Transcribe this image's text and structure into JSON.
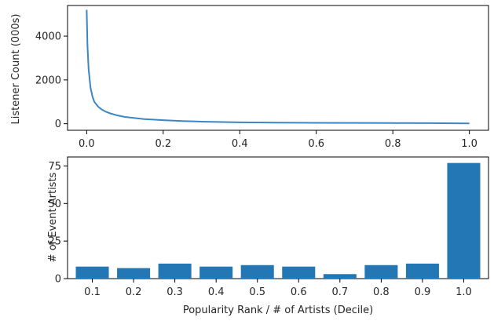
{
  "chart_data": [
    {
      "type": "line",
      "title": "",
      "xlabel": "",
      "ylabel": "Listener Count (000s)",
      "xlim": [
        -0.05,
        1.05
      ],
      "ylim": [
        -300,
        5400
      ],
      "xticks": [
        0.0,
        0.2,
        0.4,
        0.6,
        0.8,
        1.0
      ],
      "xtick_labels": [
        "0.0",
        "0.2",
        "0.4",
        "0.6",
        "0.8",
        "1.0"
      ],
      "yticks": [
        0,
        2000,
        4000
      ],
      "ytick_labels": [
        "0",
        "2000",
        "4000"
      ],
      "grid": false,
      "series": [
        {
          "color": "#3b86c6",
          "x": [
            0.0,
            0.002,
            0.005,
            0.01,
            0.015,
            0.02,
            0.03,
            0.04,
            0.05,
            0.06,
            0.08,
            0.1,
            0.15,
            0.2,
            0.25,
            0.3,
            0.4,
            0.5,
            0.6,
            0.7,
            0.8,
            0.9,
            1.0
          ],
          "y": [
            5200,
            3600,
            2500,
            1650,
            1250,
            1000,
            780,
            640,
            550,
            480,
            380,
            310,
            210,
            160,
            120,
            95,
            65,
            50,
            42,
            35,
            30,
            25,
            15
          ]
        }
      ]
    },
    {
      "type": "bar",
      "title": "",
      "xlabel": "Popularity Rank / # of Artists (Decile)",
      "ylabel": "# of Event Artists",
      "categories": [
        "0.1",
        "0.2",
        "0.3",
        "0.4",
        "0.5",
        "0.6",
        "0.7",
        "0.8",
        "0.9",
        "1.0"
      ],
      "values": [
        8,
        7,
        10,
        8,
        9,
        8,
        3,
        9,
        10,
        77
      ],
      "ylim": [
        0,
        81
      ],
      "yticks": [
        0,
        25,
        50,
        75
      ],
      "ytick_labels": [
        "0",
        "25",
        "50",
        "75"
      ],
      "bar_color": "#2277b4",
      "grid": false
    }
  ]
}
